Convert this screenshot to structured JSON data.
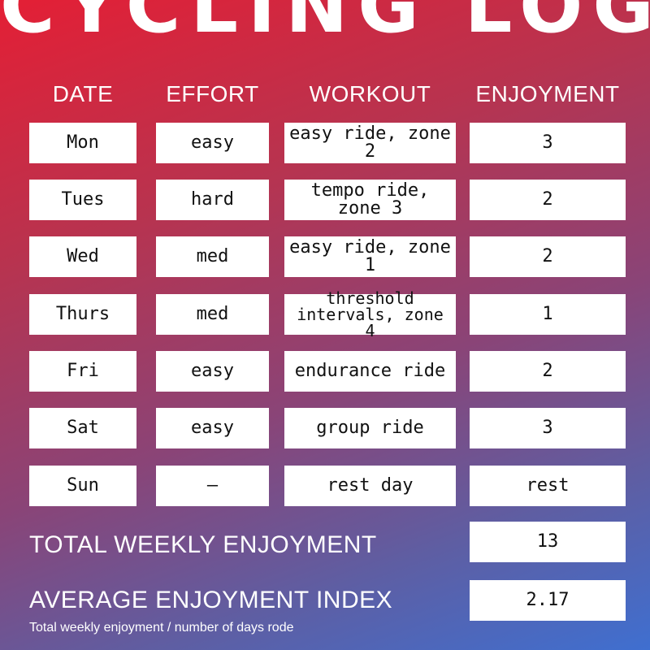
{
  "title": "CYCLING LOG",
  "headers": {
    "date": "DATE",
    "effort": "EFFORT",
    "workout": "WORKOUT",
    "enjoyment": "ENJOYMENT"
  },
  "rows": [
    {
      "date": "Mon",
      "effort": "easy",
      "workout": "easy ride, zone 2",
      "enjoyment": "3"
    },
    {
      "date": "Tues",
      "effort": "hard",
      "workout": "tempo ride, zone 3",
      "enjoyment": "2"
    },
    {
      "date": "Wed",
      "effort": "med",
      "workout": "easy ride, zone 1",
      "enjoyment": "2"
    },
    {
      "date": "Thurs",
      "effort": "med",
      "workout": "threshold intervals, zone 4",
      "enjoyment": "1"
    },
    {
      "date": "Fri",
      "effort": "easy",
      "workout": "endurance ride",
      "enjoyment": "2"
    },
    {
      "date": "Sat",
      "effort": "easy",
      "workout": "group ride",
      "enjoyment": "3"
    },
    {
      "date": "Sun",
      "effort": "—",
      "workout": "rest day",
      "enjoyment": "rest"
    }
  ],
  "summary": {
    "total_label": "TOTAL WEEKLY ENJOYMENT",
    "total_value": "13",
    "average_label": "AVERAGE ENJOYMENT INDEX",
    "average_value": "2.17",
    "note": "Total weekly enjoyment / number of days rode"
  },
  "colors": {
    "gradient_top": "#e41f35",
    "gradient_bottom": "#3f6fd0",
    "text": "#ffffff",
    "cell_background": "#ffffff"
  }
}
